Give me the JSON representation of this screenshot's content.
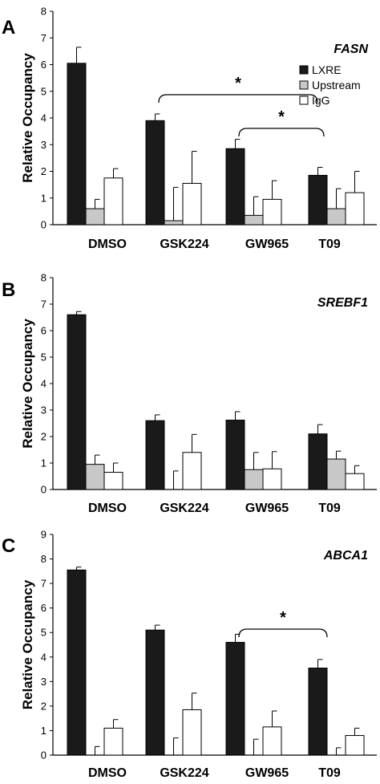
{
  "colors": {
    "LXRE": "#1a1a1a",
    "Upstream": "#c8c8c8",
    "IgG": "#ffffff"
  },
  "chart_data": [
    {
      "type": "bar",
      "panel": "A",
      "title": "FASN",
      "ylabel": "Relative Occupancy",
      "ylim": [
        0,
        8
      ],
      "yticks": [
        0,
        1,
        2,
        3,
        4,
        5,
        6,
        7,
        8
      ],
      "categories": [
        "DMSO",
        "GSK224",
        "GW965",
        "T09"
      ],
      "legend": {
        "position": "top-right",
        "entries": [
          "LXRE",
          "Upstream",
          "IgG"
        ]
      },
      "series": [
        {
          "name": "LXRE",
          "values": [
            6.05,
            3.9,
            2.85,
            1.85
          ],
          "errors": [
            0.6,
            0.25,
            0.35,
            0.3
          ]
        },
        {
          "name": "Upstream",
          "values": [
            0.6,
            0.15,
            0.35,
            0.6
          ],
          "errors": [
            0.35,
            1.25,
            0.7,
            0.75
          ]
        },
        {
          "name": "IgG",
          "values": [
            1.75,
            1.55,
            0.95,
            1.2
          ],
          "errors": [
            0.35,
            1.2,
            0.7,
            0.8
          ]
        }
      ],
      "significance": [
        {
          "from": "GSK224",
          "to": "T09",
          "label": "*"
        },
        {
          "from": "GW965",
          "to": "T09",
          "label": "*"
        }
      ]
    },
    {
      "type": "bar",
      "panel": "B",
      "title": "SREBF1",
      "ylabel": "Relative Occupancy",
      "ylim": [
        0,
        8
      ],
      "yticks": [
        0,
        1,
        2,
        3,
        4,
        5,
        6,
        7,
        8
      ],
      "categories": [
        "DMSO",
        "GSK224",
        "GW965",
        "T09"
      ],
      "series": [
        {
          "name": "LXRE",
          "values": [
            6.6,
            2.6,
            2.62,
            2.1
          ],
          "errors": [
            0.12,
            0.22,
            0.32,
            0.35
          ]
        },
        {
          "name": "Upstream",
          "values": [
            0.95,
            0.0,
            0.75,
            1.15
          ],
          "errors": [
            0.35,
            0.7,
            0.65,
            0.3
          ]
        },
        {
          "name": "IgG",
          "values": [
            0.65,
            1.4,
            0.78,
            0.6
          ],
          "errors": [
            0.35,
            0.68,
            0.65,
            0.3
          ]
        }
      ],
      "significance": []
    },
    {
      "type": "bar",
      "panel": "C",
      "title": "ABCA1",
      "ylabel": "Relative Occupancy",
      "ylim": [
        0,
        9
      ],
      "yticks": [
        0,
        1,
        2,
        3,
        4,
        5,
        6,
        7,
        8,
        9
      ],
      "categories": [
        "DMSO",
        "GSK224",
        "GW965",
        "T09"
      ],
      "series": [
        {
          "name": "LXRE",
          "values": [
            7.55,
            5.1,
            4.6,
            3.55
          ],
          "errors": [
            0.12,
            0.2,
            0.33,
            0.35
          ]
        },
        {
          "name": "Upstream",
          "values": [
            0.0,
            0.0,
            0.0,
            0.0
          ],
          "errors": [
            0.35,
            0.7,
            0.65,
            0.3
          ]
        },
        {
          "name": "IgG",
          "values": [
            1.1,
            1.85,
            1.15,
            0.8
          ],
          "errors": [
            0.35,
            0.68,
            0.65,
            0.3
          ]
        }
      ],
      "significance": [
        {
          "from": "GW965",
          "to": "T09",
          "label": "*"
        }
      ]
    }
  ]
}
